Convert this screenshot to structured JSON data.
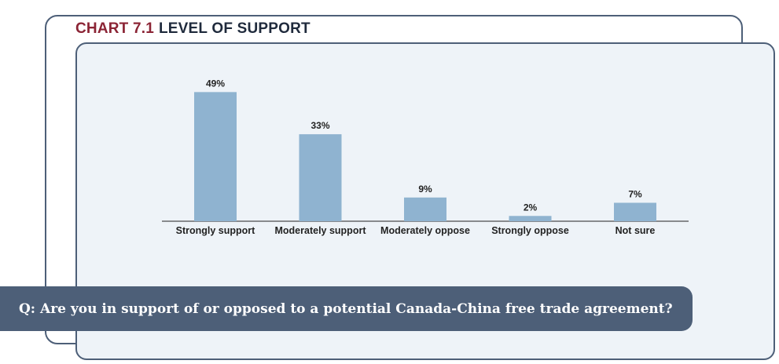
{
  "header": {
    "chart_number": "CHART 7.1",
    "chart_title": "LEVEL OF SUPPORT"
  },
  "question": "Q:  Are you in support of or opposed to a potential Canada-China free trade agreement?",
  "colors": {
    "bar": "#8fb3d0",
    "frame": "#4d5f78",
    "panel": "#eef3f8",
    "title_number": "#8b2435"
  },
  "chart_data": {
    "type": "bar",
    "title": "LEVEL OF SUPPORT",
    "categories": [
      "Strongly support",
      "Moderately support",
      "Moderately oppose",
      "Strongly oppose",
      "Not sure"
    ],
    "values": [
      49,
      33,
      9,
      2,
      7
    ],
    "value_labels": [
      "49%",
      "33%",
      "9%",
      "2%",
      "7%"
    ],
    "xlabel": "",
    "ylabel": "",
    "ylim": [
      0,
      50
    ],
    "grid": false,
    "legend": "none"
  }
}
